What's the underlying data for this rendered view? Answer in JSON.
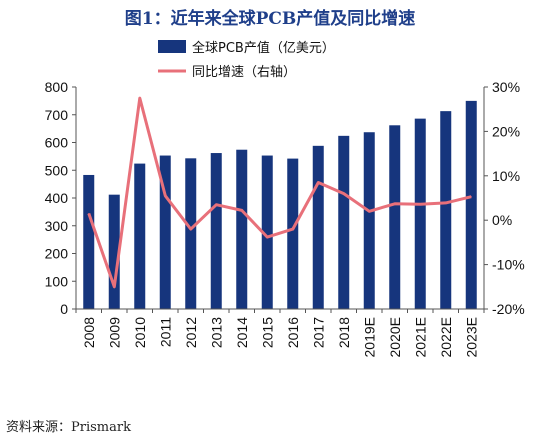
{
  "title": "图1：近年来全球PCB产值及同比增速",
  "source": "资料来源：Prismark",
  "colors": {
    "bar": "#16357d",
    "line": "#e8707a",
    "title": "#1f3f8a",
    "axis": "#555555"
  },
  "chart_data": {
    "type": "bar",
    "categories": [
      "2008",
      "2009",
      "2010",
      "2011",
      "2012",
      "2013",
      "2014",
      "2015",
      "2016",
      "2017",
      "2018",
      "2019E",
      "2020E",
      "2021E",
      "2022E",
      "2023E"
    ],
    "series": [
      {
        "name": "全球PCB产值（亿美元）",
        "type": "bar",
        "axis": "left",
        "values": [
          483,
          412,
          524,
          553,
          543,
          562,
          574,
          553,
          542,
          588,
          624,
          637,
          662,
          686,
          713,
          750
        ]
      },
      {
        "name": "同比增速（右轴）",
        "type": "line",
        "axis": "right",
        "values": [
          1.5,
          -15,
          27.5,
          5.5,
          -2,
          3.5,
          2.2,
          -3.8,
          -2,
          8.5,
          6,
          2,
          3.7,
          3.6,
          3.9,
          5.3
        ]
      }
    ],
    "ylim_left": [
      0,
      800
    ],
    "yticks_left": [
      "0",
      "100",
      "200",
      "300",
      "400",
      "500",
      "600",
      "700",
      "800"
    ],
    "ylim_right": [
      -20,
      30
    ],
    "yticks_right": [
      "-20%",
      "-10%",
      "0%",
      "10%",
      "20%",
      "30%"
    ],
    "legend_position": "top-center",
    "grid": false
  }
}
